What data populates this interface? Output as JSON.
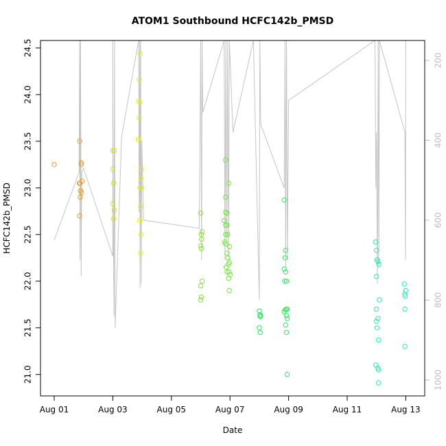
{
  "chart_data": {
    "type": "scatter",
    "title": "ATOM1 Southbound HCFC142b_PMSD",
    "xlabel": "Date",
    "ylabel": "HCFC142b_PMSD",
    "xlim_days": [
      0,
      12.6
    ],
    "x_ticks": [
      {
        "day": 0,
        "label": "Aug 01"
      },
      {
        "day": 2,
        "label": "Aug 03"
      },
      {
        "day": 4,
        "label": "Aug 05"
      },
      {
        "day": 6,
        "label": "Aug 07"
      },
      {
        "day": 8,
        "label": "Aug 09"
      },
      {
        "day": 10,
        "label": "Aug 11"
      },
      {
        "day": 12,
        "label": "Aug 13"
      }
    ],
    "ylim": [
      20.77,
      24.58
    ],
    "y_ticks": [
      21.0,
      21.5,
      22.0,
      22.5,
      23.0,
      23.5,
      24.0,
      24.5
    ],
    "y_tick_labels": [
      "21.0",
      "21.5",
      "22.0",
      "22.5",
      "23.0",
      "23.5",
      "24.0",
      "24.5"
    ],
    "right_axis": {
      "lim_reversed": [
        150,
        1040
      ],
      "ticks": [
        200,
        400,
        600,
        800,
        1000
      ],
      "tick_labels": [
        "200",
        "400",
        "600",
        "800",
        "1000"
      ],
      "color": "#bdbdbd"
    },
    "points_note": "x in days since Aug 01, y in HCFC142b_PMSD",
    "points": [
      {
        "x": 0.0,
        "y": 23.25,
        "color": "#e89a2a"
      },
      {
        "x": 0.87,
        "y": 23.5,
        "color": "#e89a2a"
      },
      {
        "x": 0.92,
        "y": 23.27,
        "color": "#e89a2a"
      },
      {
        "x": 0.93,
        "y": 23.25,
        "color": "#e89a2a"
      },
      {
        "x": 0.86,
        "y": 23.05,
        "color": "#e89a2a"
      },
      {
        "x": 0.88,
        "y": 23.05,
        "color": "#e89a2a"
      },
      {
        "x": 0.95,
        "y": 23.07,
        "color": "#e89a2a"
      },
      {
        "x": 0.9,
        "y": 22.97,
        "color": "#e89a2a"
      },
      {
        "x": 0.93,
        "y": 22.95,
        "color": "#e89a2a"
      },
      {
        "x": 0.89,
        "y": 22.9,
        "color": "#e89a2a"
      },
      {
        "x": 0.87,
        "y": 22.7,
        "color": "#e89a2a"
      },
      {
        "x": 2.0,
        "y": 23.4,
        "color": "#d8e01a"
      },
      {
        "x": 2.05,
        "y": 23.4,
        "color": "#d8e01a"
      },
      {
        "x": 2.0,
        "y": 23.2,
        "color": "#d8e01a"
      },
      {
        "x": 2.03,
        "y": 23.05,
        "color": "#d8e01a"
      },
      {
        "x": 2.0,
        "y": 22.83,
        "color": "#d8e01a"
      },
      {
        "x": 2.05,
        "y": 22.76,
        "color": "#d8e01a"
      },
      {
        "x": 2.02,
        "y": 22.67,
        "color": "#d8e01a"
      },
      {
        "x": 2.93,
        "y": 24.44,
        "color": "#e6f01a"
      },
      {
        "x": 2.9,
        "y": 24.16,
        "color": "#e6f01a"
      },
      {
        "x": 2.88,
        "y": 23.93,
        "color": "#e6f01a"
      },
      {
        "x": 2.93,
        "y": 23.92,
        "color": "#e6f01a"
      },
      {
        "x": 2.9,
        "y": 23.75,
        "color": "#e6f01a"
      },
      {
        "x": 2.87,
        "y": 23.52,
        "color": "#e6f01a"
      },
      {
        "x": 2.89,
        "y": 23.52,
        "color": "#e6f01a"
      },
      {
        "x": 2.98,
        "y": 23.2,
        "color": "#e6f01a"
      },
      {
        "x": 2.96,
        "y": 23.1,
        "color": "#e6f01a"
      },
      {
        "x": 2.93,
        "y": 23.0,
        "color": "#e6f01a"
      },
      {
        "x": 2.99,
        "y": 23.0,
        "color": "#e6f01a"
      },
      {
        "x": 2.95,
        "y": 22.8,
        "color": "#e6f01a"
      },
      {
        "x": 2.92,
        "y": 22.65,
        "color": "#e6f01a"
      },
      {
        "x": 2.97,
        "y": 22.5,
        "color": "#e6f01a"
      },
      {
        "x": 2.95,
        "y": 22.3,
        "color": "#e6f01a"
      },
      {
        "x": 5.0,
        "y": 22.73,
        "color": "#7ee82a"
      },
      {
        "x": 5.02,
        "y": 22.5,
        "color": "#7ee82a"
      },
      {
        "x": 5.05,
        "y": 22.53,
        "color": "#7ee82a"
      },
      {
        "x": 5.03,
        "y": 22.45,
        "color": "#7ee82a"
      },
      {
        "x": 5.0,
        "y": 22.38,
        "color": "#7ee82a"
      },
      {
        "x": 5.02,
        "y": 22.35,
        "color": "#7ee82a"
      },
      {
        "x": 5.05,
        "y": 22.0,
        "color": "#7ee82a"
      },
      {
        "x": 5.0,
        "y": 21.95,
        "color": "#7ee82a"
      },
      {
        "x": 5.02,
        "y": 21.83,
        "color": "#7ee82a"
      },
      {
        "x": 5.0,
        "y": 21.8,
        "color": "#7ee82a"
      },
      {
        "x": 5.85,
        "y": 23.3,
        "color": "#6ee83a"
      },
      {
        "x": 5.95,
        "y": 23.05,
        "color": "#6ee83a"
      },
      {
        "x": 5.85,
        "y": 22.9,
        "color": "#6ee83a"
      },
      {
        "x": 5.85,
        "y": 22.74,
        "color": "#6ee83a"
      },
      {
        "x": 5.9,
        "y": 22.73,
        "color": "#6ee83a"
      },
      {
        "x": 5.8,
        "y": 22.65,
        "color": "#6ee83a"
      },
      {
        "x": 5.85,
        "y": 22.6,
        "color": "#6ee83a"
      },
      {
        "x": 5.9,
        "y": 22.6,
        "color": "#6ee83a"
      },
      {
        "x": 5.85,
        "y": 22.5,
        "color": "#6ee83a"
      },
      {
        "x": 5.92,
        "y": 22.5,
        "color": "#6ee83a"
      },
      {
        "x": 5.82,
        "y": 22.42,
        "color": "#6ee83a"
      },
      {
        "x": 5.85,
        "y": 22.4,
        "color": "#6ee83a"
      },
      {
        "x": 5.98,
        "y": 22.37,
        "color": "#6ee83a"
      },
      {
        "x": 5.9,
        "y": 22.3,
        "color": "#6ee83a"
      },
      {
        "x": 5.93,
        "y": 22.25,
        "color": "#6ee83a"
      },
      {
        "x": 5.98,
        "y": 22.2,
        "color": "#6ee83a"
      },
      {
        "x": 5.95,
        "y": 22.18,
        "color": "#6ee83a"
      },
      {
        "x": 5.87,
        "y": 22.15,
        "color": "#6ee83a"
      },
      {
        "x": 5.9,
        "y": 22.1,
        "color": "#6ee83a"
      },
      {
        "x": 5.97,
        "y": 22.1,
        "color": "#6ee83a"
      },
      {
        "x": 6.0,
        "y": 22.07,
        "color": "#6ee83a"
      },
      {
        "x": 5.95,
        "y": 22.03,
        "color": "#6ee83a"
      },
      {
        "x": 5.98,
        "y": 21.9,
        "color": "#6ee83a"
      },
      {
        "x": 7.0,
        "y": 21.68,
        "color": "#2ee860"
      },
      {
        "x": 7.02,
        "y": 21.64,
        "color": "#2ee860"
      },
      {
        "x": 7.05,
        "y": 21.63,
        "color": "#2ee860"
      },
      {
        "x": 7.03,
        "y": 21.62,
        "color": "#2ee860"
      },
      {
        "x": 7.0,
        "y": 21.5,
        "color": "#2ee860"
      },
      {
        "x": 7.03,
        "y": 21.45,
        "color": "#2ee860"
      },
      {
        "x": 7.85,
        "y": 22.87,
        "color": "#2ee860"
      },
      {
        "x": 7.9,
        "y": 22.33,
        "color": "#2ee860"
      },
      {
        "x": 7.88,
        "y": 22.25,
        "color": "#2ee860"
      },
      {
        "x": 7.85,
        "y": 22.13,
        "color": "#2ee860"
      },
      {
        "x": 7.9,
        "y": 22.1,
        "color": "#2ee860"
      },
      {
        "x": 7.87,
        "y": 22.0,
        "color": "#2ee860"
      },
      {
        "x": 7.93,
        "y": 22.0,
        "color": "#2ee860"
      },
      {
        "x": 7.95,
        "y": 21.7,
        "color": "#2ee860"
      },
      {
        "x": 7.92,
        "y": 21.7,
        "color": "#2ee860"
      },
      {
        "x": 7.88,
        "y": 21.69,
        "color": "#2ee860"
      },
      {
        "x": 7.85,
        "y": 21.67,
        "color": "#2ee860"
      },
      {
        "x": 7.93,
        "y": 21.63,
        "color": "#2ee860"
      },
      {
        "x": 7.95,
        "y": 21.6,
        "color": "#2ee860"
      },
      {
        "x": 7.9,
        "y": 21.53,
        "color": "#2ee860"
      },
      {
        "x": 7.93,
        "y": 21.45,
        "color": "#2ee860"
      },
      {
        "x": 7.95,
        "y": 21.0,
        "color": "#2ee860"
      },
      {
        "x": 10.97,
        "y": 22.42,
        "color": "#2ee8b0"
      },
      {
        "x": 11.0,
        "y": 22.33,
        "color": "#2ee8b0"
      },
      {
        "x": 11.02,
        "y": 22.23,
        "color": "#2ee8b0"
      },
      {
        "x": 11.05,
        "y": 22.21,
        "color": "#2ee8b0"
      },
      {
        "x": 11.08,
        "y": 22.18,
        "color": "#2ee8b0"
      },
      {
        "x": 11.0,
        "y": 22.05,
        "color": "#2ee8b0"
      },
      {
        "x": 11.1,
        "y": 21.8,
        "color": "#2ee8b0"
      },
      {
        "x": 11.0,
        "y": 21.7,
        "color": "#2ee8b0"
      },
      {
        "x": 11.05,
        "y": 21.6,
        "color": "#2ee8b0"
      },
      {
        "x": 11.0,
        "y": 21.57,
        "color": "#2ee8b0"
      },
      {
        "x": 11.02,
        "y": 21.5,
        "color": "#2ee8b0"
      },
      {
        "x": 11.07,
        "y": 21.37,
        "color": "#2ee8b0"
      },
      {
        "x": 10.98,
        "y": 21.1,
        "color": "#2ee8b0"
      },
      {
        "x": 11.05,
        "y": 21.07,
        "color": "#2ee8b0"
      },
      {
        "x": 11.07,
        "y": 21.05,
        "color": "#2ee8b0"
      },
      {
        "x": 11.07,
        "y": 20.91,
        "color": "#2ee8b0"
      },
      {
        "x": 11.95,
        "y": 21.97,
        "color": "#2ee8b0"
      },
      {
        "x": 12.0,
        "y": 21.9,
        "color": "#2ee8b0"
      },
      {
        "x": 11.97,
        "y": 21.86,
        "color": "#2ee8b0"
      },
      {
        "x": 11.98,
        "y": 21.84,
        "color": "#2ee8b0"
      },
      {
        "x": 11.97,
        "y": 21.7,
        "color": "#2ee8b0"
      },
      {
        "x": 11.97,
        "y": 21.3,
        "color": "#2ee8b0"
      }
    ],
    "altitude_track_note": "grey line, x in days since Aug 01, values on right axis",
    "altitude_track": [
      [
        0.0,
        650
      ],
      [
        0.85,
        480
      ],
      [
        0.87,
        150
      ],
      [
        0.88,
        700
      ],
      [
        0.9,
        150
      ],
      [
        0.92,
        740
      ],
      [
        0.94,
        480
      ],
      [
        1.0,
        470
      ],
      [
        2.0,
        690
      ],
      [
        2.0,
        150
      ],
      [
        2.02,
        660
      ],
      [
        2.04,
        840
      ],
      [
        2.06,
        150
      ],
      [
        2.08,
        870
      ],
      [
        2.3,
        390
      ],
      [
        2.88,
        150
      ],
      [
        2.9,
        580
      ],
      [
        2.92,
        150
      ],
      [
        2.93,
        770
      ],
      [
        2.95,
        150
      ],
      [
        2.97,
        760
      ],
      [
        2.99,
        400
      ],
      [
        3.05,
        600
      ],
      [
        4.95,
        620
      ],
      [
        5.0,
        150
      ],
      [
        5.03,
        700
      ],
      [
        5.05,
        150
      ],
      [
        5.07,
        330
      ],
      [
        5.8,
        150
      ],
      [
        5.83,
        700
      ],
      [
        5.86,
        150
      ],
      [
        5.89,
        650
      ],
      [
        5.92,
        150
      ],
      [
        5.95,
        700
      ],
      [
        5.98,
        150
      ],
      [
        6.1,
        380
      ],
      [
        6.8,
        150
      ],
      [
        7.0,
        800
      ],
      [
        7.02,
        150
      ],
      [
        7.05,
        360
      ],
      [
        7.85,
        520
      ],
      [
        7.88,
        150
      ],
      [
        7.9,
        720
      ],
      [
        7.93,
        150
      ],
      [
        7.96,
        700
      ],
      [
        8.0,
        300
      ],
      [
        10.95,
        150
      ],
      [
        10.98,
        520
      ],
      [
        11.0,
        380
      ],
      [
        11.03,
        760
      ],
      [
        11.06,
        150
      ],
      [
        11.08,
        720
      ],
      [
        11.1,
        150
      ],
      [
        11.97,
        380
      ],
      [
        11.99,
        700
      ],
      [
        12.0,
        150
      ]
    ]
  }
}
